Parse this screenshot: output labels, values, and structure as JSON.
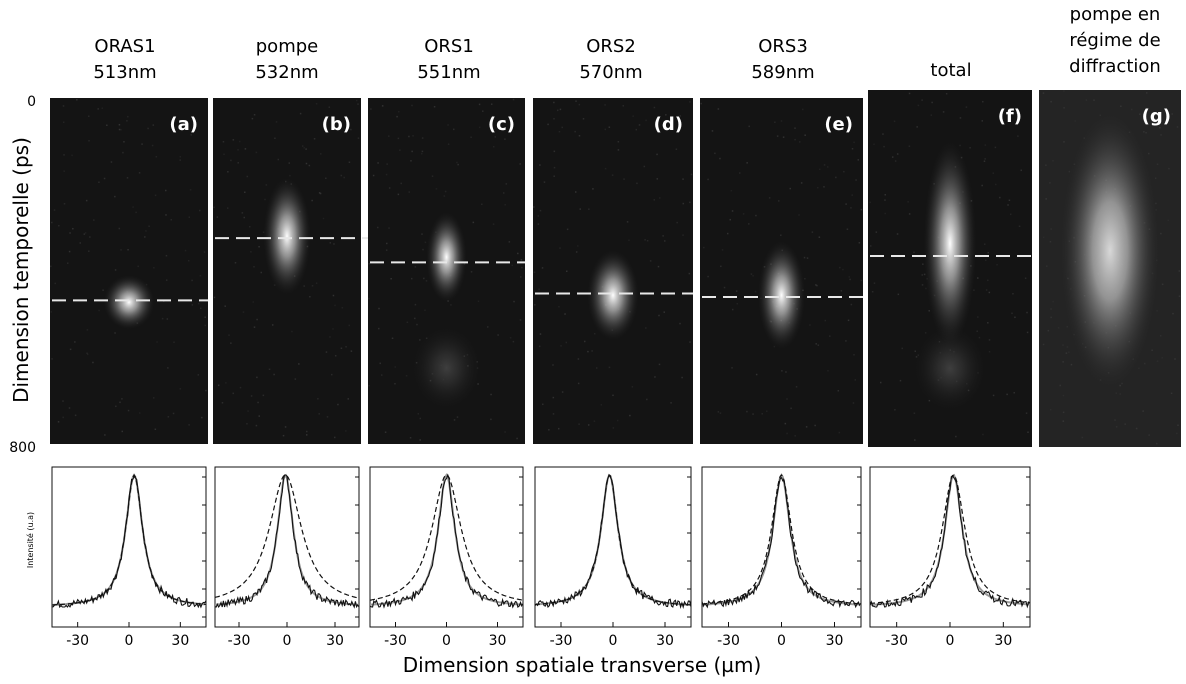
{
  "figure": {
    "ylabel": "Dimension temporelle (ps)",
    "y_ticks": [
      "0",
      "800"
    ],
    "xlabel": "Dimension spatiale transverse (µm)",
    "intensity_label": "Intensité (u.a)",
    "x_ticks": [
      "-30",
      "0",
      "30"
    ]
  },
  "panels": [
    {
      "title_lines": [
        "ORAS1",
        "513nm"
      ],
      "letter": "(a)",
      "spot_y": 0.59,
      "spot_sx": 0.1,
      "spot_sy": 0.06,
      "dash_y": 0.585,
      "has_profile": true,
      "profile_mismatch": 0.0
    },
    {
      "title_lines": [
        "pompe",
        "532nm"
      ],
      "letter": "(b)",
      "spot_y": 0.4,
      "spot_sx": 0.1,
      "spot_sy": 0.13,
      "dash_y": 0.405,
      "has_profile": true,
      "profile_mismatch": 0.35
    },
    {
      "title_lines": [
        "ORS1",
        "551nm"
      ],
      "letter": "(c)",
      "spot_y": 0.46,
      "spot_sx": 0.08,
      "spot_sy": 0.1,
      "dash_y": 0.475,
      "has_profile": true,
      "profile_mismatch": 0.25
    },
    {
      "title_lines": [
        "ORS2",
        "570nm"
      ],
      "letter": "(d)",
      "spot_y": 0.57,
      "spot_sx": 0.1,
      "spot_sy": 0.1,
      "dash_y": 0.565,
      "has_profile": true,
      "profile_mismatch": 0.0
    },
    {
      "title_lines": [
        "ORS3",
        "589nm"
      ],
      "letter": "(e)",
      "spot_y": 0.57,
      "spot_sx": 0.09,
      "spot_sy": 0.12,
      "dash_y": 0.575,
      "has_profile": true,
      "profile_mismatch": 0.05
    },
    {
      "title_lines": [
        "total"
      ],
      "letter": "(f)",
      "spot_y": 0.43,
      "spot_sx": 0.1,
      "spot_sy": 0.22,
      "dash_y": 0.465,
      "has_profile": true,
      "profile_mismatch": 0.1
    },
    {
      "title_lines": [
        "pompe en",
        "régime de",
        "diffraction"
      ],
      "letter": "(g)",
      "spot_y": 0.45,
      "spot_sx": 0.35,
      "spot_sy": 0.3,
      "dash_y": null,
      "has_profile": false,
      "profile_mismatch": 0.0
    }
  ]
}
